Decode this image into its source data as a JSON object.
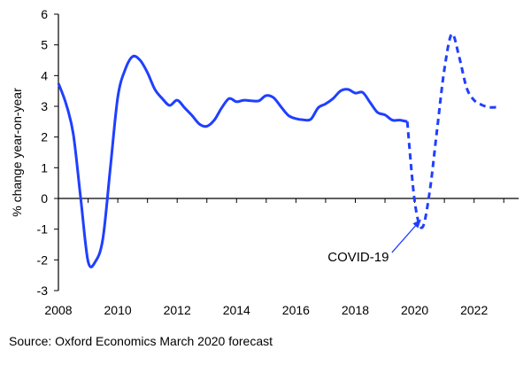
{
  "chart_data": {
    "type": "line",
    "ylabel": "% change year-on-year",
    "xlabel": "",
    "xlim": [
      2008,
      2023.5
    ],
    "ylim": [
      -3,
      6
    ],
    "x_ticks": [
      "2008",
      "2010",
      "2012",
      "2014",
      "2016",
      "2018",
      "2020",
      "2022"
    ],
    "y_ticks": [
      "6",
      "5",
      "4",
      "3",
      "2",
      "1",
      "0",
      "-1",
      "-2",
      "-3"
    ],
    "grid": false,
    "series": [
      {
        "style": "solid",
        "color": "#1f3fff",
        "x": [
          2008.0,
          2008.25,
          2008.5,
          2008.75,
          2009.0,
          2009.25,
          2009.5,
          2009.75,
          2010.0,
          2010.25,
          2010.5,
          2010.75,
          2011.0,
          2011.25,
          2011.5,
          2011.75,
          2012.0,
          2012.25,
          2012.5,
          2012.75,
          2013.0,
          2013.25,
          2013.5,
          2013.75,
          2014.0,
          2014.25,
          2014.5,
          2014.75,
          2015.0,
          2015.25,
          2015.5,
          2015.75,
          2016.0,
          2016.25,
          2016.5,
          2016.75,
          2017.0,
          2017.25,
          2017.5,
          2017.75,
          2018.0,
          2018.25,
          2018.5,
          2018.75,
          2019.0,
          2019.25,
          2019.5,
          2019.75
        ],
        "y": [
          3.75,
          3.1,
          2.1,
          0.0,
          -2.05,
          -2.05,
          -1.3,
          1.0,
          3.3,
          4.2,
          4.62,
          4.5,
          4.1,
          3.55,
          3.25,
          3.03,
          3.2,
          2.95,
          2.7,
          2.42,
          2.35,
          2.55,
          2.95,
          3.25,
          3.15,
          3.2,
          3.18,
          3.18,
          3.35,
          3.28,
          2.98,
          2.7,
          2.6,
          2.56,
          2.58,
          2.95,
          3.08,
          3.25,
          3.5,
          3.55,
          3.43,
          3.45,
          3.12,
          2.8,
          2.72,
          2.55,
          2.55,
          2.5
        ]
      },
      {
        "style": "dashed",
        "color": "#1f3fff",
        "x": [
          2019.75,
          2020.0,
          2020.25,
          2020.5,
          2020.75,
          2021.0,
          2021.25,
          2021.5,
          2021.75,
          2022.0,
          2022.25,
          2022.5,
          2022.75
        ],
        "y": [
          2.5,
          -0.1,
          -0.95,
          0.2,
          2.2,
          4.2,
          5.35,
          4.6,
          3.6,
          3.2,
          3.05,
          2.97,
          2.97
        ]
      }
    ],
    "annotations": [
      {
        "text": "COVID-19",
        "x": 2018.1,
        "y": -2.05,
        "arrow_to": [
          2020.2,
          -0.7
        ]
      }
    ]
  },
  "source": "Source: Oxford Economics March 2020 forecast"
}
